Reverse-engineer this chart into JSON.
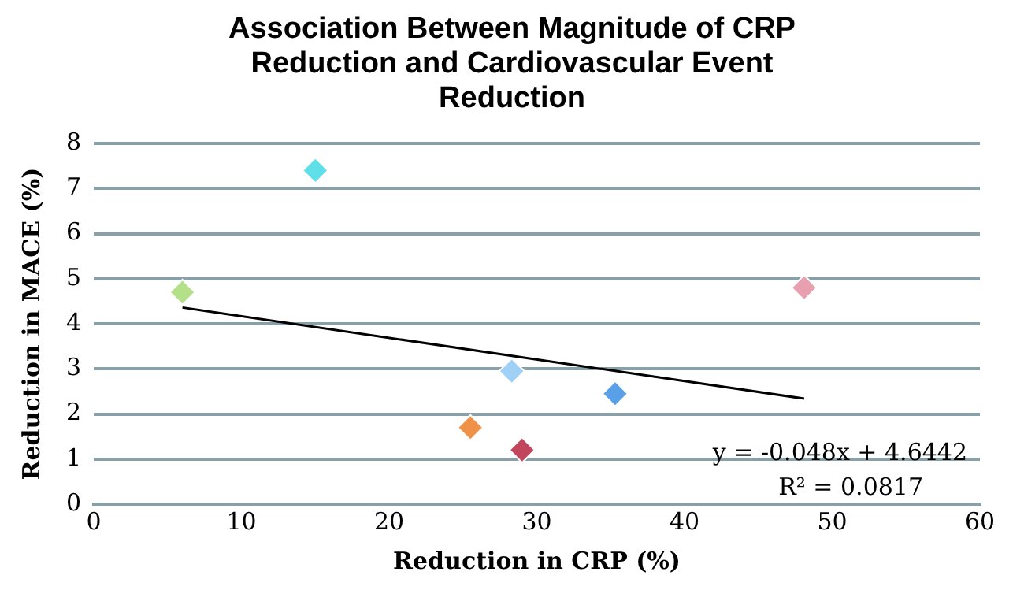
{
  "chart_data": {
    "type": "scatter",
    "title": "Association Between Magnitude of CRP Reduction and Cardiovascular Event Reduction",
    "xlabel": "Reduction in CRP (%)",
    "ylabel": "Reduction in MACE (%)",
    "xlim": [
      0,
      60
    ],
    "xticks": [
      0,
      10,
      20,
      30,
      40,
      50,
      60
    ],
    "ylim": [
      0,
      8
    ],
    "yticks": [
      0,
      1,
      2,
      3,
      4,
      5,
      6,
      7,
      8
    ],
    "grid": "y",
    "marker": "diamond",
    "legend": false,
    "series": [
      {
        "x": [
          6,
          15,
          25.5,
          28.3,
          29,
          35.3,
          48.1
        ],
        "values": [
          4.7,
          7.4,
          1.7,
          2.95,
          1.2,
          2.45,
          4.8
        ],
        "colors": [
          "#b5e08a",
          "#5fe0e8",
          "#f0914a",
          "#9fd0f5",
          "#c2455e",
          "#5aa0e8",
          "#e8a0b0"
        ]
      },
      {
        "type": "line",
        "x": [
          6,
          48.1
        ],
        "values": [
          4.36,
          2.34
        ],
        "color": "#000000",
        "marker": "none",
        "line_style": "solid"
      }
    ],
    "annotations": [
      "y = -0.048x + 4.6442",
      "R² = 0.0817"
    ]
  }
}
